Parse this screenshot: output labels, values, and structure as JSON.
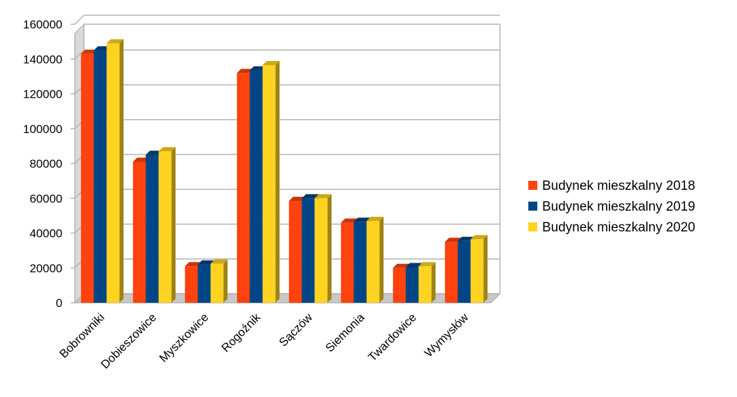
{
  "chart_data": {
    "type": "bar",
    "title": "",
    "xlabel": "",
    "ylabel": "",
    "ylim": [
      0,
      160000
    ],
    "yticks": [
      0,
      20000,
      40000,
      60000,
      80000,
      100000,
      120000,
      140000,
      160000
    ],
    "grid": true,
    "legend_position": "right",
    "categories": [
      "Bobrowniki",
      "Dobieszowice",
      "Myszkowice",
      "Rogoźnik",
      "Sączów",
      "Siemonia",
      "Twardowice",
      "Wymysłów"
    ],
    "series": [
      {
        "name": "Budynek mieszkalny 2018",
        "color": "#ff420e",
        "values": [
          143000,
          81000,
          21000,
          132000,
          58500,
          46000,
          20000,
          35000
        ]
      },
      {
        "name": "Budynek mieszkalny 2019",
        "color": "#004586",
        "values": [
          145000,
          85000,
          22000,
          133500,
          60000,
          46500,
          20500,
          35500
        ]
      },
      {
        "name": "Budynek mieszkalny 2020",
        "color": "#ffd320",
        "values": [
          149000,
          87000,
          22500,
          136500,
          60000,
          47000,
          21000,
          36500
        ]
      }
    ]
  }
}
